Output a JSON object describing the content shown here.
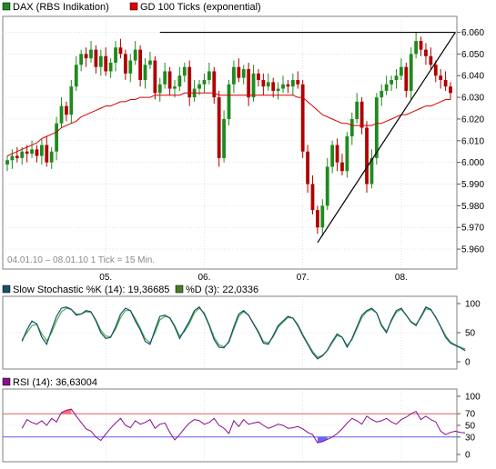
{
  "header": {
    "legend": [
      {
        "label": "DAX (RBS Indikation)",
        "color": "#1f8a1f"
      },
      {
        "label": "GD 100 Ticks (exponential)",
        "color": "#e00000"
      }
    ]
  },
  "colors": {
    "up": "#1f8a1f",
    "down": "#b00000",
    "ema": "#d40000",
    "trendline": "#000000",
    "stoch_k": "#1a4f6a",
    "stoch_d": "#4caf50",
    "rsi": "#8a0f8a",
    "rsi_overbought_fill": "#ff5a5a",
    "rsi_oversold_fill": "#4b4bff",
    "rsi_upper_line": "#e06060",
    "rsi_lower_line": "#6060e0",
    "grid": "#d0d0d0",
    "panel_border": "#808080"
  },
  "chart_data": [
    {
      "type": "line",
      "subtype": "candlestick",
      "legend": [
        "DAX (RBS Indikation)",
        "GD 100 Ticks (exponential)"
      ],
      "date_range_note": "04.01.10 – 08.01.10   1 Tick = 15 Min.",
      "x_tick_labels": [
        "05.",
        "06.",
        "07.",
        "08."
      ],
      "x_tick_index": [
        20,
        40,
        60,
        80
      ],
      "x_range": [
        0,
        90
      ],
      "ylim": [
        5955,
        6064
      ],
      "y_ticks": [
        5960,
        5970,
        5980,
        5990,
        6000,
        6010,
        6020,
        6030,
        6040,
        6050,
        6060
      ],
      "y_tick_labels": [
        "5.960",
        "5.970",
        "5.980",
        "5.990",
        "6.000",
        "6.010",
        "6.020",
        "6.030",
        "6.040",
        "6.050",
        "6.060"
      ],
      "grid": true,
      "close": [
        6001,
        6003,
        6002,
        6005,
        6004,
        6006,
        6003,
        6008,
        6000,
        6005,
        6018,
        6026,
        6022,
        6035,
        6045,
        6050,
        6048,
        6052,
        6044,
        6049,
        6042,
        6046,
        6053,
        6050,
        6041,
        6047,
        6052,
        6038,
        6045,
        6047,
        6032,
        6036,
        6042,
        6034,
        6035,
        6040,
        6044,
        6030,
        6034,
        6036,
        6038,
        6042,
        6030,
        6002,
        6020,
        6036,
        6044,
        6039,
        6043,
        6030,
        6041,
        6038,
        6035,
        6037,
        6033,
        6034,
        6036,
        6035,
        6038,
        6036,
        6005,
        5990,
        5978,
        5970,
        5980,
        5998,
        6008,
        6000,
        5996,
        6012,
        6020,
        6028,
        6016,
        5990,
        6002,
        6030,
        6033,
        6036,
        6038,
        6040,
        6044,
        6033,
        6050,
        6056,
        6052,
        6049,
        6045,
        6040,
        6038,
        6035,
        6032
      ],
      "ema": [
        6003,
        6004,
        6005,
        6006,
        6007,
        6008,
        6009,
        6011,
        6012,
        6013,
        6014,
        6016,
        6017,
        6018,
        6019,
        6021,
        6022,
        6023,
        6024,
        6025,
        6026,
        6026,
        6027,
        6028,
        6028,
        6029,
        6029,
        6030,
        6030,
        6030,
        6031,
        6031,
        6031,
        6031,
        6031,
        6031,
        6032,
        6032,
        6032,
        6032,
        6032,
        6032,
        6032,
        6031,
        6031,
        6031,
        6031,
        6031,
        6031,
        6031,
        6031,
        6031,
        6031,
        6031,
        6031,
        6031,
        6031,
        6031,
        6031,
        6030,
        6030,
        6028,
        6026,
        6024,
        6022,
        6021,
        6020,
        6019,
        6018,
        6018,
        6017,
        6017,
        6017,
        6017,
        6017,
        6018,
        6018,
        6019,
        6020,
        6021,
        6022,
        6022,
        6023,
        6024,
        6025,
        6026,
        6026,
        6027,
        6028,
        6029,
        6029
      ],
      "trendlines": [
        {
          "from": [
            31,
            6060
          ],
          "to": [
            91,
            6060
          ]
        },
        {
          "from": [
            63,
            5963
          ],
          "to": [
            91,
            6060
          ]
        }
      ]
    },
    {
      "type": "line",
      "title": "Slow Stochastic %K (14): 19,36685",
      "series": [
        {
          "name": "Slow Stochastic %K (14): 19,36685",
          "values": [
            35,
            55,
            70,
            65,
            42,
            30,
            55,
            78,
            92,
            94,
            90,
            80,
            82,
            88,
            86,
            70,
            50,
            40,
            42,
            60,
            82,
            92,
            88,
            70,
            55,
            35,
            30,
            55,
            78,
            80,
            75,
            60,
            40,
            55,
            70,
            88,
            94,
            82,
            62,
            38,
            25,
            24,
            35,
            60,
            82,
            88,
            80,
            65,
            50,
            32,
            30,
            45,
            62,
            70,
            78,
            75,
            62,
            45,
            30,
            15,
            5,
            10,
            20,
            35,
            48,
            42,
            25,
            40,
            60,
            80,
            88,
            92,
            84,
            62,
            50,
            72,
            88,
            92,
            80,
            68,
            62,
            78,
            94,
            90,
            76,
            60,
            42,
            32,
            28,
            24,
            19
          ]
        },
        {
          "name": "%D (3): 22,0336",
          "values": [
            38,
            50,
            62,
            64,
            48,
            36,
            50,
            70,
            86,
            92,
            90,
            82,
            82,
            86,
            85,
            72,
            54,
            44,
            43,
            56,
            76,
            88,
            88,
            74,
            58,
            40,
            33,
            50,
            72,
            78,
            76,
            62,
            44,
            52,
            66,
            84,
            92,
            84,
            64,
            42,
            29,
            26,
            33,
            56,
            78,
            86,
            80,
            66,
            52,
            35,
            32,
            43,
            59,
            68,
            76,
            75,
            64,
            47,
            32,
            18,
            8,
            11,
            19,
            33,
            45,
            42,
            28,
            38,
            57,
            76,
            86,
            90,
            84,
            64,
            52,
            70,
            85,
            90,
            80,
            69,
            64,
            76,
            91,
            89,
            77,
            61,
            45,
            34,
            29,
            25,
            22
          ]
        }
      ],
      "ylim": [
        0,
        100
      ],
      "y_ticks": [
        0,
        50,
        100
      ],
      "y_tick_labels": [
        "0",
        "50",
        "100"
      ],
      "grid": true
    },
    {
      "type": "line",
      "title": "RSI (14): 36,63004",
      "series": [
        {
          "name": "RSI (14): 36,63004",
          "values": [
            45,
            60,
            55,
            52,
            58,
            50,
            62,
            56,
            72,
            76,
            78,
            66,
            55,
            44,
            40,
            30,
            24,
            35,
            45,
            54,
            62,
            50,
            46,
            58,
            52,
            55,
            60,
            45,
            52,
            54,
            38,
            25,
            34,
            45,
            54,
            60,
            58,
            52,
            55,
            62,
            50,
            45,
            36,
            58,
            48,
            60,
            52,
            54,
            56,
            50,
            45,
            48,
            52,
            50,
            45,
            46,
            48,
            44,
            38,
            34,
            20,
            22,
            26,
            30,
            36,
            44,
            54,
            62,
            58,
            52,
            66,
            60,
            56,
            58,
            62,
            56,
            52,
            60,
            64,
            70,
            74,
            60,
            66,
            60,
            56,
            40,
            34,
            38,
            40,
            38,
            37
          ]
        }
      ],
      "ylim": [
        0,
        100
      ],
      "y_ticks": [
        0,
        30,
        50,
        70,
        100
      ],
      "y_tick_labels": [
        "0",
        "30",
        "50",
        "70",
        "100"
      ],
      "levels": [
        70,
        30
      ],
      "grid": true
    }
  ]
}
